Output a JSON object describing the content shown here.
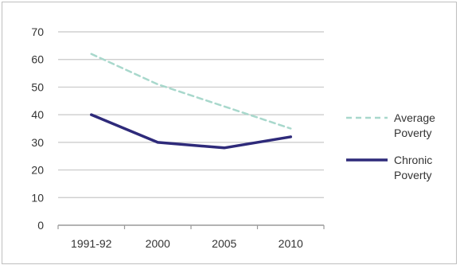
{
  "chart_data": {
    "type": "line",
    "categories": [
      "1991-92",
      "2000",
      "2005",
      "2010"
    ],
    "series": [
      {
        "name": "Average Poverty",
        "values": [
          62,
          51,
          43,
          35
        ],
        "color": "#a8d8cc",
        "dash": "dashed"
      },
      {
        "name": "Chronic Poverty",
        "values": [
          40,
          30,
          28,
          32
        ],
        "color": "#2e2a7a",
        "dash": "solid"
      }
    ],
    "ylim": [
      0,
      70
    ],
    "yticks": [
      0,
      10,
      20,
      30,
      40,
      50,
      60,
      70
    ],
    "grid": true,
    "legend": {
      "placement": "right",
      "entries": [
        {
          "lines": [
            "Average",
            "Poverty"
          ]
        },
        {
          "lines": [
            "Chronic",
            "Poverty"
          ]
        }
      ]
    },
    "title": "",
    "xlabel": "",
    "ylabel": ""
  }
}
